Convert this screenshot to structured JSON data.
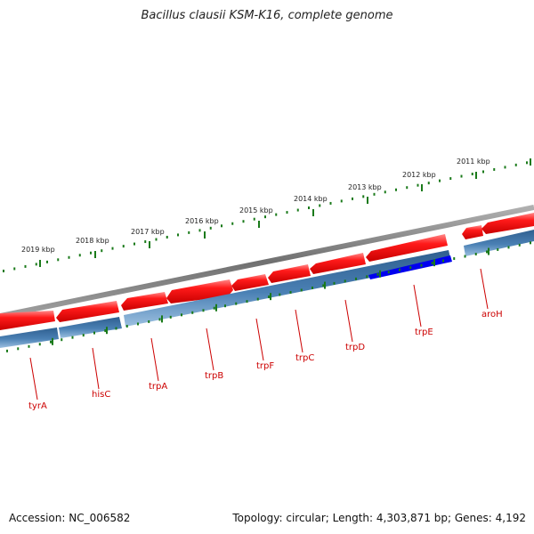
{
  "title": "Bacillus clausii KSM-K16, complete genome",
  "footer": {
    "accession": "Accession: NC_006582",
    "topology": "Topology: circular; Length: 4,303,871 bp; Genes: 4,192"
  },
  "colors": {
    "forward_gene": "#ff0000",
    "reverse_gene": "#4682b4",
    "highlight_gene": "#0000ee",
    "backbone": "#808080",
    "ticks": "#1a7a1a",
    "gene_label": "#cc0000"
  },
  "ruler": {
    "labels": [
      "2019 kbp",
      "2018 kbp",
      "2017 kbp",
      "2016 kbp",
      "2015 kbp",
      "2014 kbp",
      "2013 kbp",
      "2012 kbp",
      "2011 kbp"
    ]
  },
  "genes": [
    "tyrA",
    "hisC",
    "trpA",
    "trpB",
    "trpF",
    "trpC",
    "trpD",
    "trpE",
    "aroH"
  ]
}
